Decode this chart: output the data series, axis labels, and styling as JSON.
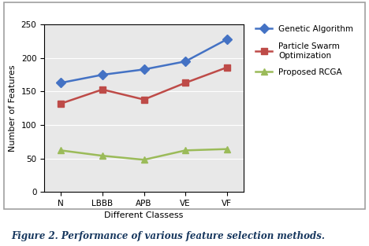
{
  "categories": [
    "N",
    "LBBB",
    "APB",
    "VE",
    "VF"
  ],
  "genetic_algorithm": [
    163,
    175,
    183,
    195,
    228
  ],
  "particle_swarm": [
    132,
    153,
    138,
    163,
    186
  ],
  "proposed_rcga": [
    62,
    54,
    48,
    62,
    64
  ],
  "ga_color": "#4472C4",
  "pso_color": "#BE4B48",
  "rcga_color": "#9BBB59",
  "xlabel": "Different Classess",
  "ylabel": "Number of Features",
  "ylim": [
    0,
    250
  ],
  "yticks": [
    0,
    50,
    100,
    150,
    200,
    250
  ],
  "legend_labels": [
    "Genetic Algorithm",
    "Particle Swarm\nOptimization",
    "Proposed RCGA"
  ],
  "caption": "Figure 2. Performance of various feature selection methods.",
  "plot_bg": "#E8E8E8",
  "outer_border_color": "#808080",
  "marker_ga": "D",
  "marker_pso": "s",
  "marker_rcga": "^",
  "linewidth": 1.8,
  "markersize": 6,
  "caption_color": "#17375E",
  "caption_fontsize": 8.5
}
